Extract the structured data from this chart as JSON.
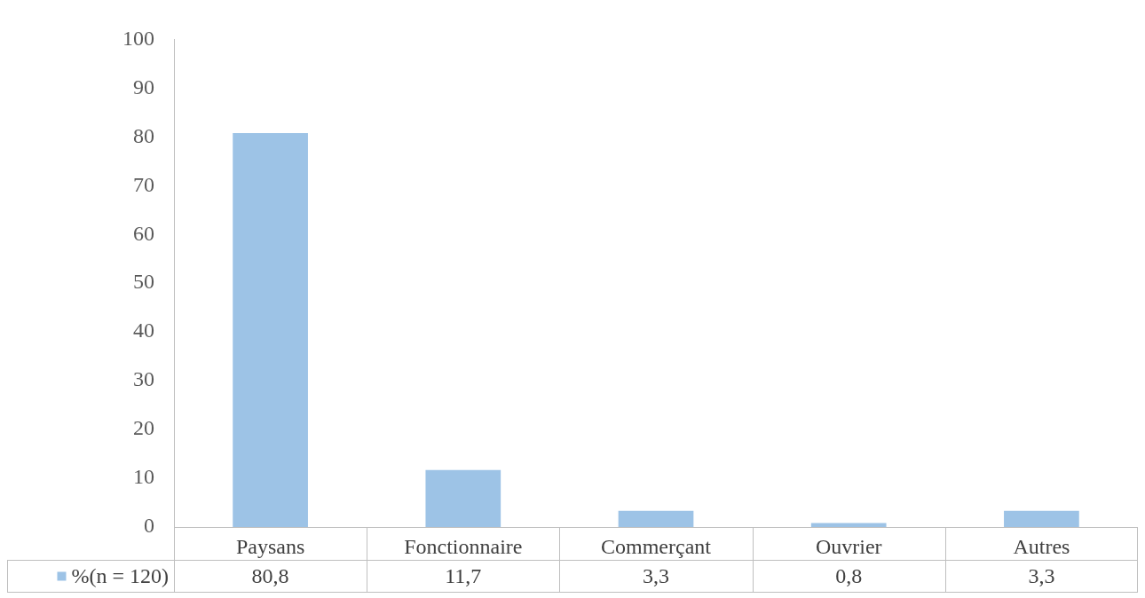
{
  "chart_data": {
    "type": "bar",
    "categories": [
      "Paysans",
      "Fonctionnaire",
      "Commerçant",
      "Ouvrier",
      "Autres"
    ],
    "series": [
      {
        "name": "%(n = 120)",
        "color": "#9dc3e6",
        "values": [
          80.8,
          11.7,
          3.3,
          0.8,
          3.3
        ],
        "value_labels": [
          "80,8",
          "11,7",
          "3,3",
          "0,8",
          "3,3"
        ]
      }
    ],
    "ylim": [
      0,
      100
    ],
    "yticks": [
      0,
      10,
      20,
      30,
      40,
      50,
      60,
      70,
      80,
      90,
      100
    ],
    "legend": "bottom"
  }
}
